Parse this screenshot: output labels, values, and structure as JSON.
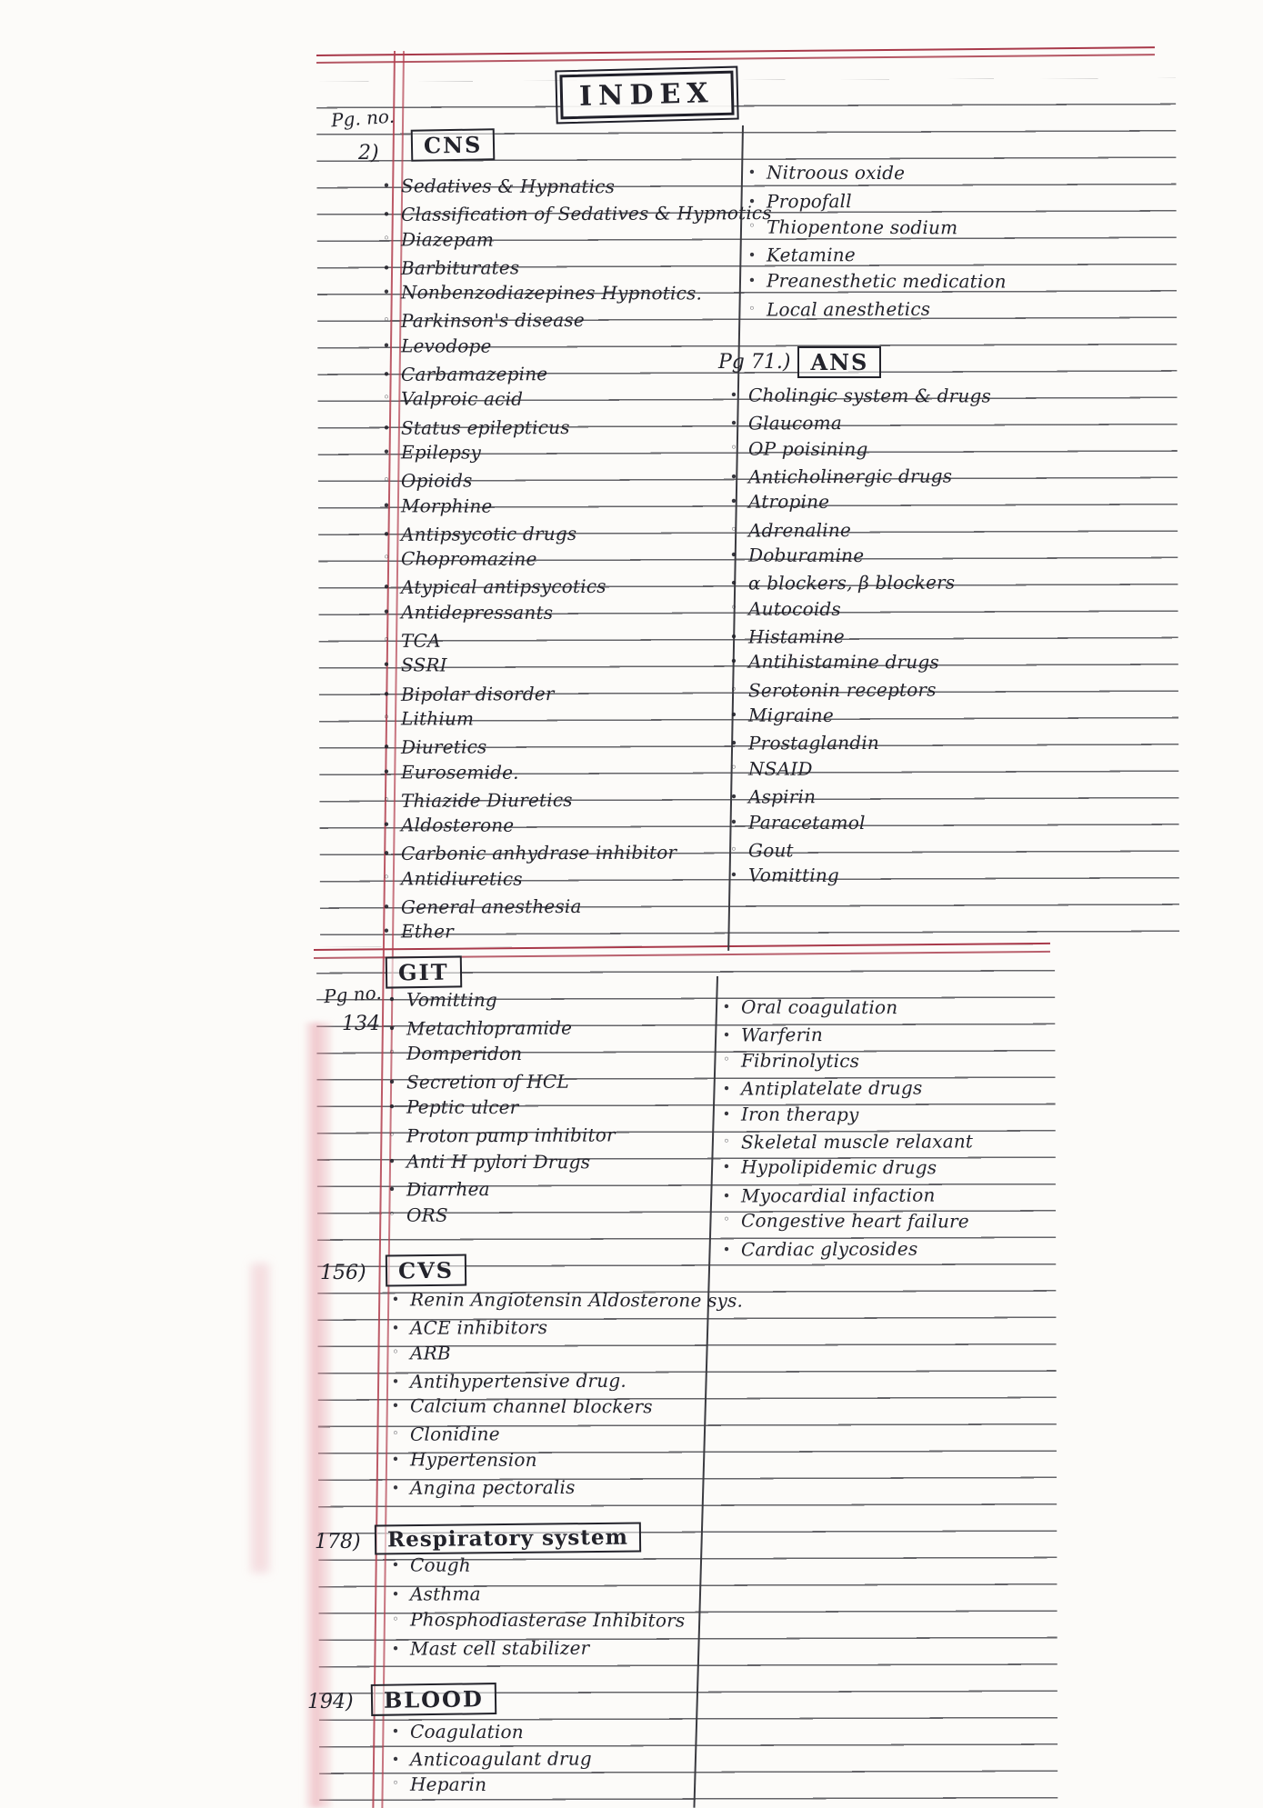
{
  "page": {
    "title": "INDEX",
    "pg_no_label": "Pg. no.",
    "colors": {
      "ink": "#23232b",
      "rule_line": "#45454c",
      "margin_red": "#b23e4e",
      "top_rule_red": "#a8394a",
      "pink_edge": "#e494a0"
    }
  },
  "cns": {
    "page_label": "2)",
    "header": "CNS",
    "items": [
      "Sedatives & Hypnatics",
      "Classification of Sedatives & Hypnotics",
      "Diazepam",
      "Barbiturates",
      "Nonbenzodiazepines Hypnotics.",
      "Parkinson's disease",
      "Levodope",
      "Carbamazepine",
      "Valproic acid",
      "Status epilepticus",
      "Epilepsy",
      "Opioids",
      "Morphine",
      "Antipsycotic drugs",
      "Chopromazine",
      "Atypical antipsycotics",
      "Antidepressants",
      "TCA",
      "SSRI",
      "Bipolar disorder",
      "Lithium",
      "Diuretics",
      "Eurosemide.",
      "Thiazide Diuretics",
      "Aldosterone",
      "Carbonic anhydrase inhibitor",
      "Antidiuretics",
      "General anesthesia",
      "Ether"
    ]
  },
  "anesthesia_col": {
    "items": [
      "Nitroous oxide",
      "Propofall",
      "Thiopentone sodium",
      "Ketamine",
      "Preanesthetic medication",
      "Local anesthetics"
    ]
  },
  "ans": {
    "page_label": "Pg 71.)",
    "header": "ANS",
    "items": [
      "Cholingic system & drugs",
      "Glaucoma",
      "OP poisining",
      "Anticholinergic drugs",
      "Atropine",
      "Adrenaline",
      "Doburamine",
      "α blockers, β blockers",
      "Autocoids",
      "Histamine",
      "Antihistamine drugs",
      "Serotonin receptors",
      "Migraine",
      "Prostaglandin",
      "NSAID",
      "Aspirin",
      "Paracetamol",
      "Gout",
      "Vomitting"
    ]
  },
  "git": {
    "pg_no_label": "Pg no.",
    "page_label": "134",
    "header": "GIT",
    "items": [
      "Vomitting",
      "Metachlopramide",
      "Domperidon",
      "Secretion of HCL",
      "Peptic ulcer",
      "Proton pump inhibitor",
      "Anti H pylori Drugs",
      "Diarrhea",
      "ORS"
    ]
  },
  "cardio_col": {
    "items": [
      "Oral coagulation",
      "Warferin",
      "Fibrinolytics",
      "Antiplatelate drugs",
      "Iron therapy",
      "Skeletal muscle relaxant",
      "Hypolipidemic drugs",
      "Myocardial infaction",
      "Congestive heart failure",
      "Cardiac glycosides"
    ]
  },
  "cvs": {
    "page_label": "156)",
    "header": "CVS",
    "items": [
      "Renin Angiotensin Aldosterone sys.",
      "ACE inhibitors",
      "ARB",
      "Antihypertensive drug.",
      "Calcium channel blockers",
      "Clonidine",
      "Hypertension",
      "Angina pectoralis"
    ]
  },
  "respiratory": {
    "page_label": "178)",
    "header": "Respiratory system",
    "items": [
      "Cough",
      "Asthma",
      "Phosphodiasterase Inhibitors",
      "Mast cell stabilizer"
    ]
  },
  "blood": {
    "page_label": "194)",
    "header": "BLOOD",
    "items": [
      "Coagulation",
      "Anticoagulant drug",
      "Heparin"
    ]
  }
}
